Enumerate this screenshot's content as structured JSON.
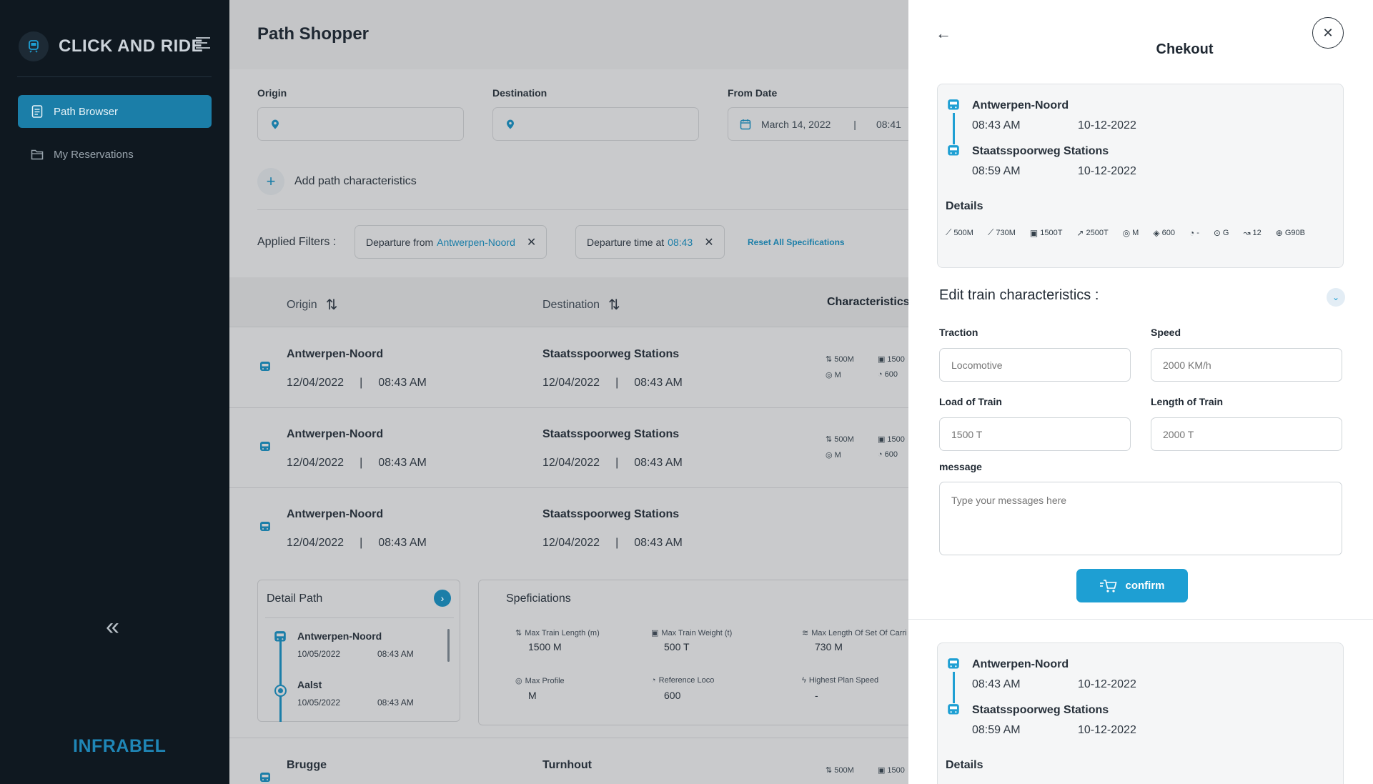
{
  "sidebar": {
    "brand": "CLICK AND RIDE",
    "nav": [
      {
        "label": "Path Browser",
        "active": true
      },
      {
        "label": "My Reservations",
        "active": false
      }
    ],
    "footer_logo": "INFRABEL"
  },
  "main": {
    "title": "Path Shopper",
    "fields": {
      "origin_label": "Origin",
      "destination_label": "Destination",
      "from_date_label": "From Date",
      "from_date_value": "March 14, 2022",
      "from_time_value": "08:41"
    },
    "add_characteristics": "Add path characteristics",
    "filters": {
      "label": "Applied Filters :",
      "chips": [
        {
          "prefix": "Departure from",
          "value": "Antwerpen-Noord"
        },
        {
          "prefix": "Departure time at",
          "value": "08:43"
        }
      ],
      "reset": "Reset All Specifications"
    },
    "table": {
      "headers": [
        "Origin",
        "Destination",
        "Characteristics"
      ],
      "rows": [
        {
          "origin": "Antwerpen-Noord",
          "origin_date": "12/04/2022",
          "origin_time": "08:43 AM",
          "destination": "Staatsspoorweg Stations",
          "dest_date": "12/04/2022",
          "dest_time": "08:43 AM",
          "chars": [
            "500M",
            "1500",
            "M",
            "600"
          ]
        },
        {
          "origin": "Antwerpen-Noord",
          "origin_date": "12/04/2022",
          "origin_time": "08:43 AM",
          "destination": "Staatsspoorweg Stations",
          "dest_date": "12/04/2022",
          "dest_time": "08:43 AM",
          "chars": [
            "500M",
            "1500",
            "M",
            "600"
          ]
        },
        {
          "origin": "Antwerpen-Noord",
          "origin_date": "12/04/2022",
          "origin_time": "08:43 AM",
          "destination": "Staatsspoorweg Stations",
          "dest_date": "12/04/2022",
          "dest_time": "08:43 AM",
          "chars": []
        },
        {
          "origin": "Brugge",
          "origin_date": "",
          "origin_time": "",
          "destination": "Turnhout",
          "dest_date": "",
          "dest_time": "",
          "chars": [
            "500M",
            "1500"
          ]
        }
      ]
    },
    "detail_path": {
      "title": "Detail Path",
      "stops": [
        {
          "name": "Antwerpen-Noord",
          "date": "10/05/2022",
          "time": "08:43 AM"
        },
        {
          "name": "Aalst",
          "date": "10/05/2022",
          "time": "08:43 AM"
        }
      ]
    },
    "specifications": {
      "title": "Speficiations",
      "items": [
        {
          "label": "Max Train Length (m)",
          "value": "1500 M"
        },
        {
          "label": "Max Train Weight (t)",
          "value": "500 T"
        },
        {
          "label": "Max Length Of Set Of Carri",
          "value": "730 M"
        },
        {
          "label": "Max Profile",
          "value": "M"
        },
        {
          "label": "Reference Loco",
          "value": "600"
        },
        {
          "label": "Highest Plan Speed",
          "value": "-"
        }
      ]
    }
  },
  "checkout": {
    "title": "Chekout",
    "trip": {
      "from": {
        "name": "Antwerpen-Noord",
        "time": "08:43 AM",
        "date": "10-12-2022"
      },
      "to": {
        "name": "Staatsspoorweg Stations",
        "time": "08:59 AM",
        "date": "10-12-2022"
      },
      "details_title": "Details",
      "details": [
        "500M",
        "730M",
        "1500T",
        "2500T",
        "M",
        "600",
        "-",
        "G",
        "12",
        "G90B"
      ]
    },
    "edit": {
      "title": "Edit train characteristics :",
      "traction_label": "Traction",
      "traction_placeholder": "Locomotive",
      "speed_label": "Speed",
      "speed_placeholder": "2000 KM/h",
      "load_label": "Load of Train",
      "load_placeholder": "1500 T",
      "length_label": "Length of Train",
      "length_placeholder": "2000 T",
      "message_label": "message",
      "message_placeholder": "Type your messages here",
      "confirm": "confirm"
    },
    "trip2": {
      "from": {
        "name": "Antwerpen-Noord",
        "time": "08:43 AM",
        "date": "10-12-2022"
      },
      "to": {
        "name": "Staatsspoorweg Stations",
        "time": "08:59 AM",
        "date": "10-12-2022"
      },
      "details_title": "Details"
    }
  }
}
